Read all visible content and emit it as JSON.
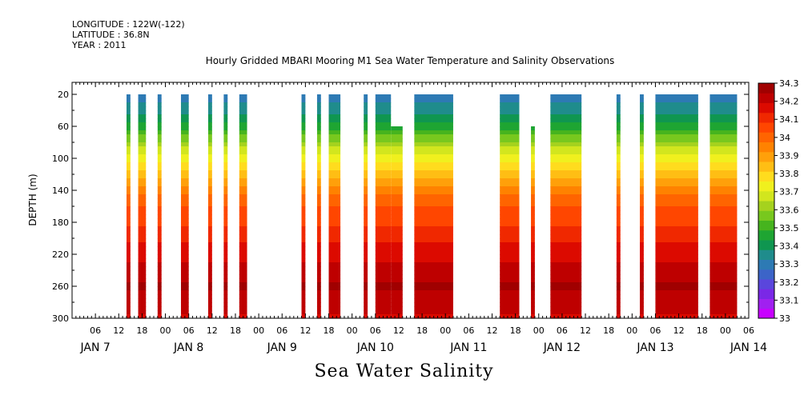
{
  "header": {
    "longitude": "LONGITUDE : 122W(-122)",
    "latitude": "LATITUDE : 36.8N",
    "year": "YEAR : 2011"
  },
  "bottom_title": "Sea Water Salinity",
  "colors": {
    "scale": [
      "#c800ff",
      "#a020f0",
      "#7a28e6",
      "#5a46dc",
      "#3c64c8",
      "#2d7ab4",
      "#1f8c8c",
      "#0f9650",
      "#1ea532",
      "#46b41e",
      "#78c81e",
      "#a5d21e",
      "#d2e61e",
      "#f0f01e",
      "#ffdc1e",
      "#ffbe14",
      "#ffa00a",
      "#ff8200",
      "#ff6400",
      "#ff4600",
      "#f02800",
      "#dc0a00",
      "#be0000",
      "#a00000"
    ]
  },
  "chart_data": {
    "type": "heatmap",
    "title": "Hourly Gridded MBARI Mooring M1 Sea Water Temperature and Salinity Observations",
    "ylabel": "DEPTH (m)",
    "xlabel": "",
    "ylim": [
      300,
      5
    ],
    "yticks": [
      20,
      60,
      100,
      140,
      180,
      220,
      260,
      300
    ],
    "xlim_hours": [
      0,
      174
    ],
    "hour_tick_labels": [
      "06",
      "12",
      "18",
      "00",
      "06",
      "12",
      "18",
      "00",
      "06",
      "12",
      "18",
      "00",
      "06",
      "12",
      "18",
      "00",
      "06",
      "12",
      "18",
      "00",
      "06",
      "12",
      "18",
      "00",
      "06",
      "12",
      "18",
      "00",
      "06"
    ],
    "day_labels": [
      "JAN 7",
      "JAN 8",
      "JAN 9",
      "JAN 10",
      "JAN 11",
      "JAN 12",
      "JAN 13",
      "JAN 14"
    ],
    "colorbar": {
      "levels": [
        33.0,
        33.1,
        33.2,
        33.3,
        33.4,
        33.5,
        33.6,
        33.7,
        33.8,
        33.9,
        34.0,
        34.1,
        34.2,
        34.3
      ],
      "labels": [
        "33",
        "33.1",
        "33.2",
        "33.3",
        "33.4",
        "33.5",
        "33.6",
        "33.7",
        "33.8",
        "33.9",
        "34",
        "34.1",
        "34.2",
        "34.3"
      ]
    },
    "data_segments": [
      {
        "start_hour": 14,
        "end_hour": 15,
        "top_depth": 20
      },
      {
        "start_hour": 17,
        "end_hour": 19,
        "top_depth": 20
      },
      {
        "start_hour": 22,
        "end_hour": 23,
        "top_depth": 20
      },
      {
        "start_hour": 28,
        "end_hour": 30,
        "top_depth": 20
      },
      {
        "start_hour": 35,
        "end_hour": 36,
        "top_depth": 20
      },
      {
        "start_hour": 39,
        "end_hour": 40,
        "top_depth": 20
      },
      {
        "start_hour": 43,
        "end_hour": 45,
        "top_depth": 20
      },
      {
        "start_hour": 59,
        "end_hour": 60,
        "top_depth": 20
      },
      {
        "start_hour": 63,
        "end_hour": 64,
        "top_depth": 20
      },
      {
        "start_hour": 66,
        "end_hour": 69,
        "top_depth": 20
      },
      {
        "start_hour": 75,
        "end_hour": 76,
        "top_depth": 20
      },
      {
        "start_hour": 78,
        "end_hour": 82,
        "top_depth": 20
      },
      {
        "start_hour": 82,
        "end_hour": 85,
        "top_depth": 60
      },
      {
        "start_hour": 88,
        "end_hour": 98,
        "top_depth": 20
      },
      {
        "start_hour": 110,
        "end_hour": 115,
        "top_depth": 20
      },
      {
        "start_hour": 118,
        "end_hour": 119,
        "top_depth": 60
      },
      {
        "start_hour": 123,
        "end_hour": 131,
        "top_depth": 20
      },
      {
        "start_hour": 140,
        "end_hour": 141,
        "top_depth": 20
      },
      {
        "start_hour": 146,
        "end_hour": 147,
        "top_depth": 20
      },
      {
        "start_hour": 150,
        "end_hour": 161,
        "top_depth": 20
      },
      {
        "start_hour": 164,
        "end_hour": 171,
        "top_depth": 20
      }
    ],
    "profile": [
      {
        "depth": 20,
        "value": 33.3
      },
      {
        "depth": 40,
        "value": 33.36
      },
      {
        "depth": 60,
        "value": 33.46
      },
      {
        "depth": 80,
        "value": 33.6
      },
      {
        "depth": 100,
        "value": 33.74
      },
      {
        "depth": 120,
        "value": 33.84
      },
      {
        "depth": 140,
        "value": 33.94
      },
      {
        "depth": 160,
        "value": 34.04
      },
      {
        "depth": 180,
        "value": 34.07
      },
      {
        "depth": 200,
        "value": 34.12
      },
      {
        "depth": 220,
        "value": 34.17
      },
      {
        "depth": 240,
        "value": 34.22
      },
      {
        "depth": 260,
        "value": 34.26
      },
      {
        "depth": 280,
        "value": 34.22
      },
      {
        "depth": 300,
        "value": 34.18
      }
    ]
  }
}
